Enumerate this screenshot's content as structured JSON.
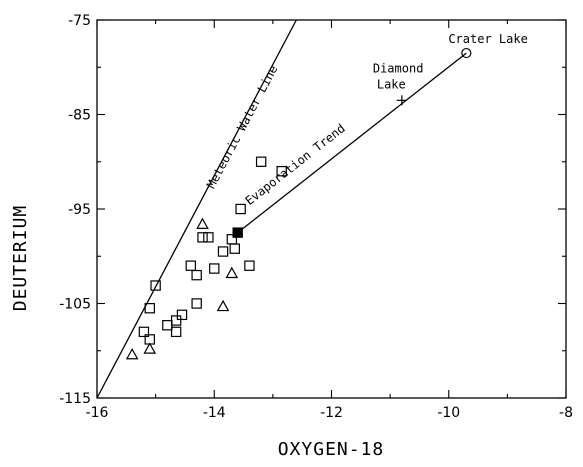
{
  "chart_data": {
    "type": "scatter",
    "xlabel": "OXYGEN-18",
    "ylabel": "DEUTERIUM",
    "xlim": [
      -16,
      -8
    ],
    "ylim": [
      -115,
      -75
    ],
    "xticks": [
      -16,
      -14,
      -12,
      -10,
      -8
    ],
    "yticks": [
      -115,
      -105,
      -95,
      -85,
      -75
    ],
    "xtick_labels": [
      "-16",
      "-14",
      "-12",
      "-10",
      "-8"
    ],
    "ytick_labels": [
      "-115",
      "-105",
      "-95",
      "-85",
      "-75"
    ],
    "grid": false,
    "lines": [
      {
        "label": "Meteoric Water Line",
        "x": [
          -16,
          -12.6
        ],
        "y": [
          -115,
          -75
        ]
      },
      {
        "label": "Evaporation Trend",
        "x": [
          -13.6,
          -9.7
        ],
        "y": [
          -97.5,
          -78.5
        ]
      }
    ],
    "series": [
      {
        "marker": "square",
        "points": [
          [
            -13.2,
            -90
          ],
          [
            -12.85,
            -91
          ],
          [
            -13.55,
            -95
          ],
          [
            -14.1,
            -98
          ],
          [
            -13.7,
            -98.2
          ],
          [
            -14.2,
            -98
          ],
          [
            -13.65,
            -99.2
          ],
          [
            -13.85,
            -99.5
          ],
          [
            -14.4,
            -101
          ],
          [
            -14.0,
            -101.3
          ],
          [
            -13.4,
            -101
          ],
          [
            -14.3,
            -102
          ],
          [
            -15.0,
            -103.1
          ],
          [
            -14.3,
            -105
          ],
          [
            -15.1,
            -105.5
          ],
          [
            -14.55,
            -106.2
          ],
          [
            -14.65,
            -106.8
          ],
          [
            -14.8,
            -107.3
          ],
          [
            -15.2,
            -108
          ],
          [
            -14.65,
            -108
          ],
          [
            -15.1,
            -108.8
          ]
        ]
      },
      {
        "marker": "triangle",
        "points": [
          [
            -14.2,
            -96.6
          ],
          [
            -13.7,
            -101.8
          ],
          [
            -13.85,
            -105.3
          ],
          [
            -15.1,
            -109.8
          ],
          [
            -15.4,
            -110.4
          ]
        ]
      },
      {
        "marker": "filled-square",
        "points": [
          [
            -13.6,
            -97.5
          ]
        ]
      },
      {
        "label": "Crater Lake",
        "marker": "circle",
        "points": [
          [
            -9.7,
            -78.5
          ]
        ]
      },
      {
        "label": "Diamond Lake",
        "marker": "plus",
        "points": [
          [
            -10.8,
            -83.5
          ]
        ]
      }
    ]
  }
}
